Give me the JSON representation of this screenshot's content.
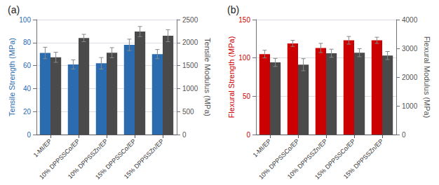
{
  "chart_data": [
    {
      "type": "bar",
      "title": "(a)",
      "categories": [
        "1-MI/EP",
        "10% DPPSSCo/EP",
        "10% DPPSSZn/EP",
        "15% DPPSSCo/EP",
        "15% DPPSSZn/EP"
      ],
      "ylabel": "Tensile Strength (MPa)",
      "y2label": "Tensile Modulus (MPa)",
      "ylim": [
        0,
        100
      ],
      "yticks": [
        0,
        20,
        40,
        60,
        80,
        100
      ],
      "y2lim": [
        0,
        2500
      ],
      "y2ticks": [
        0,
        500,
        1000,
        1500,
        2000,
        2500
      ],
      "grid": true,
      "series": [
        {
          "color": "#2B6CB0",
          "values": [
            71,
            61,
            62,
            78,
            70
          ],
          "errors": [
            5,
            4,
            5,
            5,
            4
          ]
        },
        {
          "color": "#4a4a4a",
          "values": [
            1680,
            2100,
            1780,
            2240,
            2150
          ],
          "errors": [
            110,
            80,
            110,
            110,
            130
          ],
          "axis": "y2"
        }
      ]
    },
    {
      "type": "bar",
      "title": "(b)",
      "categories": [
        "1-MI/EP",
        "10% DPPSSCo/EP",
        "10% DPPSSZn/EP",
        "15% DPPSSCo/EP",
        "15% DPPSSZn/EP"
      ],
      "ylabel": "Flexural Strength (MPa)",
      "y2label": "Flexural Modulus (MPa)",
      "ylim": [
        0,
        150
      ],
      "yticks": [
        0,
        50,
        100,
        150
      ],
      "y2lim": [
        0,
        4000
      ],
      "y2ticks": [
        0,
        1000,
        2000,
        3000,
        4000
      ],
      "grid": true,
      "series": [
        {
          "color": "#cc0000",
          "values": [
            105,
            119,
            113,
            123,
            123
          ],
          "errors": [
            5,
            4,
            6,
            5,
            4
          ]
        },
        {
          "color": "#4a4a4a",
          "values": [
            2510,
            2430,
            2830,
            2850,
            2750
          ],
          "errors": [
            140,
            210,
            140,
            140,
            140
          ],
          "axis": "y2"
        }
      ]
    }
  ]
}
